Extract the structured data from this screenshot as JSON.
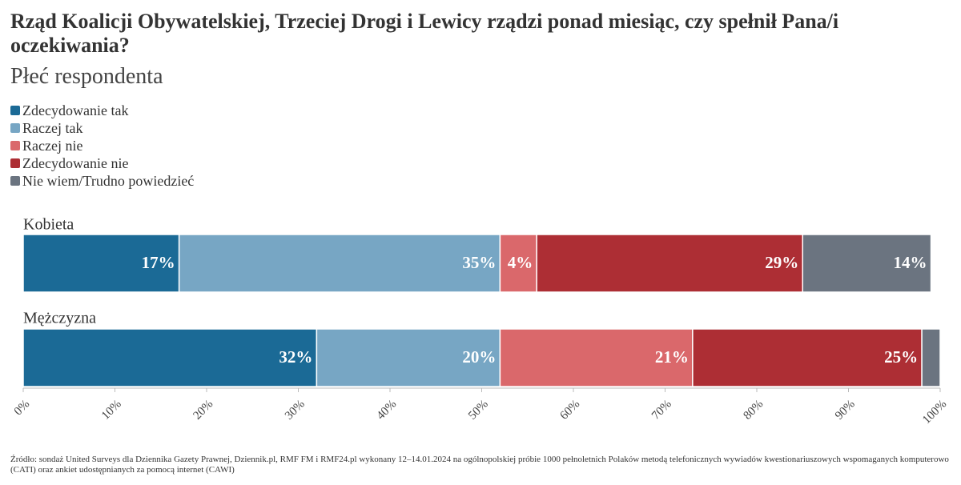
{
  "chart_data": {
    "type": "stacked-bar-horizontal",
    "title": "Rząd Koalicji Obywatelskiej, Trzeciej Drogi i Lewicy rządzi ponad miesiąc, czy spełnił Pana/i oczekiwania?",
    "subtitle": "Płeć respondenta",
    "categories": [
      "Kobieta",
      "Mężczyzna"
    ],
    "series": [
      {
        "name": "Zdecydowanie tak",
        "color": "#1b6a96",
        "values": [
          17,
          32
        ],
        "value_labels": [
          "17%",
          "32%"
        ]
      },
      {
        "name": "Raczej tak",
        "color": "#77a6c4",
        "values": [
          35,
          20
        ],
        "value_labels": [
          "35%",
          "20%"
        ]
      },
      {
        "name": "Raczej nie",
        "color": "#da686b",
        "values": [
          4,
          21
        ],
        "value_labels": [
          "4%",
          "21%"
        ]
      },
      {
        "name": "Zdecydowanie nie",
        "color": "#ad2e34",
        "values": [
          29,
          25
        ],
        "value_labels": [
          "29%",
          "25%"
        ]
      },
      {
        "name": "Nie wiem/Trudno powiedzieć",
        "color": "#6b7480",
        "values": [
          14,
          2
        ],
        "value_labels": [
          "14%",
          null
        ]
      }
    ],
    "xlim": [
      0,
      100
    ],
    "xticks": [
      {
        "value": 0,
        "label": "0%"
      },
      {
        "value": 10,
        "label": "10%"
      },
      {
        "value": 20,
        "label": "20%"
      },
      {
        "value": 30,
        "label": "30%"
      },
      {
        "value": 40,
        "label": "40%"
      },
      {
        "value": 50,
        "label": "50%"
      },
      {
        "value": 60,
        "label": "60%"
      },
      {
        "value": 70,
        "label": "70%"
      },
      {
        "value": 80,
        "label": "80%"
      },
      {
        "value": 90,
        "label": "90%"
      },
      {
        "value": 100,
        "label": "100%"
      }
    ],
    "source": "Źródło: sondaż United Surveys dla Dziennika Gazety Prawnej, Dziennik.pl, RMF FM i RMF24.pl wykonany 12–14.01.2024 na ogólnopolskiej próbie 1000 pełnoletnich Polaków metodą telefonicznych wywiadów kwestionariuszowych wspomaganych komputerowo (CATI) oraz ankiet udostępnianych za pomocą internet (CAWI)"
  }
}
